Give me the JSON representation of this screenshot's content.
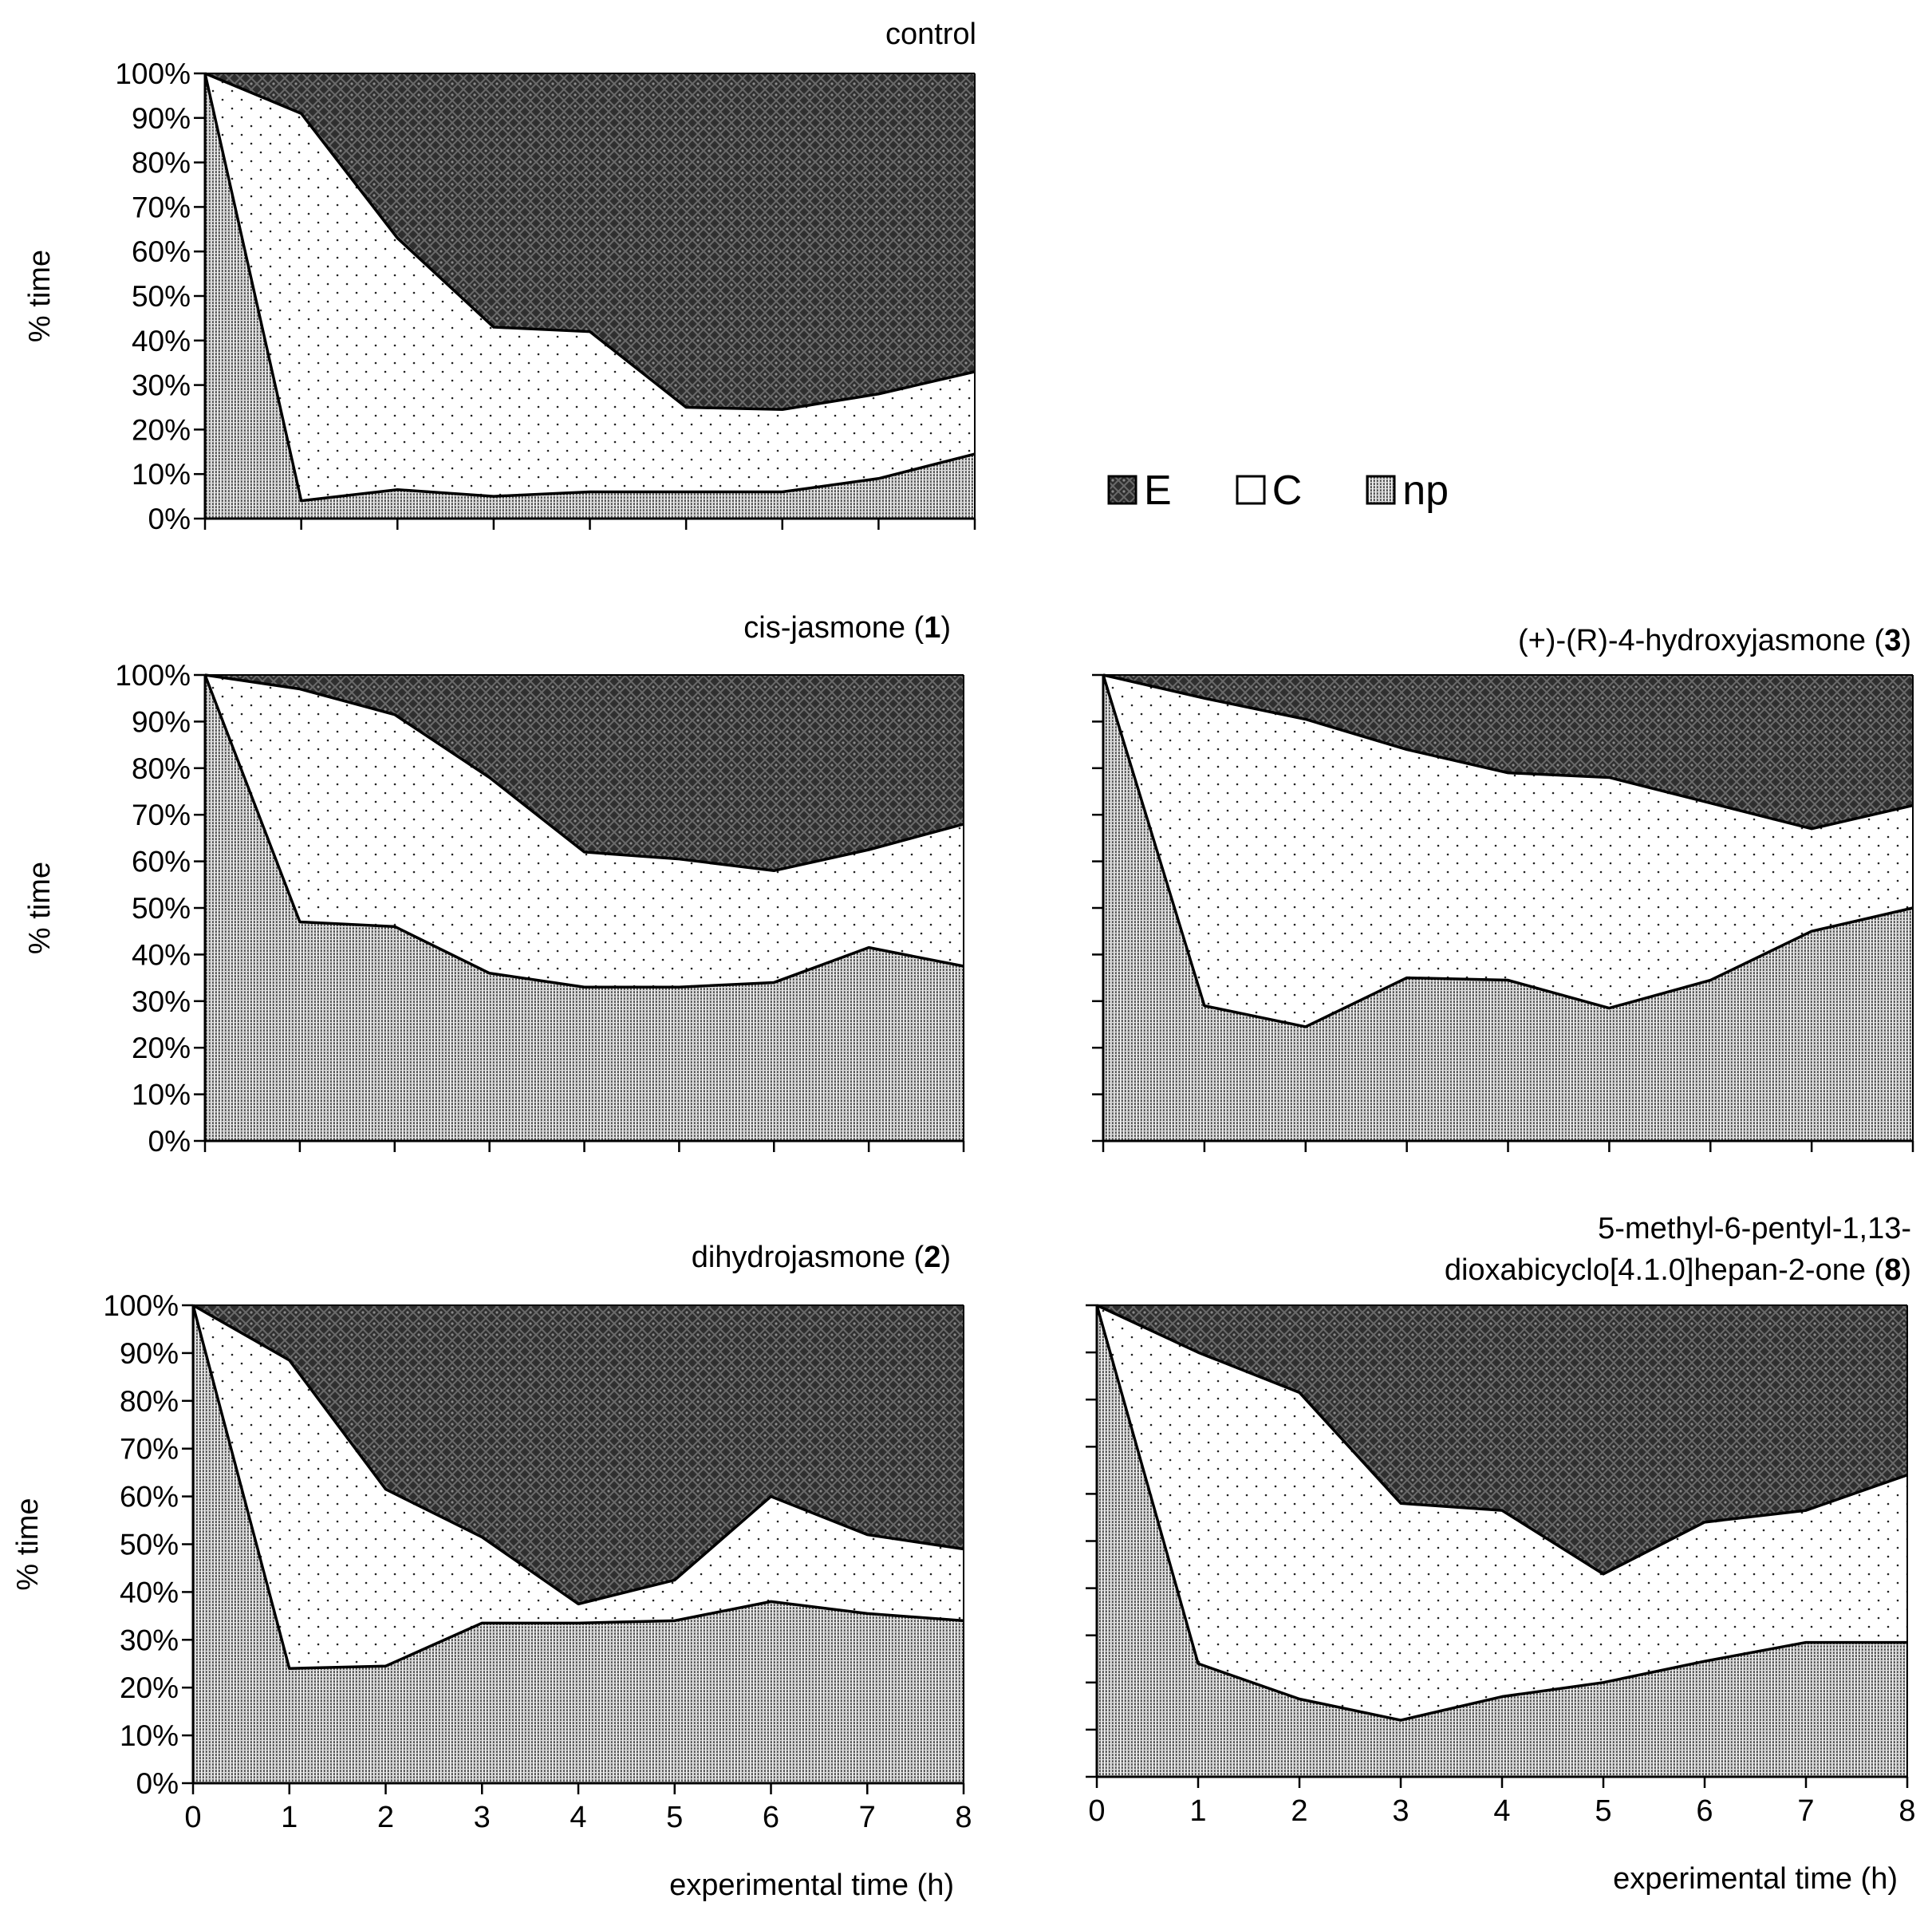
{
  "legend": {
    "E": "E",
    "C": "C",
    "np": "np"
  },
  "y_tick_labels": [
    "0%",
    "10%",
    "20%",
    "30%",
    "40%",
    "50%",
    "60%",
    "70%",
    "80%",
    "90%",
    "100%"
  ],
  "x_tick_labels": [
    "0",
    "1",
    "2",
    "3",
    "4",
    "5",
    "6",
    "7",
    "8"
  ],
  "chart_data": [
    {
      "id": "control",
      "type": "area",
      "title": "control",
      "title_bold": "",
      "ylabel": "% time",
      "xlabel": "",
      "show_y_tick_labels": true,
      "show_x_tick_labels": false,
      "x": [
        0,
        1,
        2,
        3,
        4,
        5,
        6,
        7,
        8
      ],
      "ylim": [
        0,
        100
      ],
      "series": [
        {
          "name": "np",
          "values": [
            100,
            4,
            6.5,
            5,
            6,
            6,
            6,
            9,
            14.5
          ]
        },
        {
          "name": "C",
          "values": [
            0,
            87,
            56.5,
            38,
            36,
            19,
            18.5,
            19,
            18.5
          ]
        },
        {
          "name": "E",
          "values": [
            0,
            9,
            37,
            57,
            58,
            75,
            75.5,
            72,
            67
          ]
        }
      ]
    },
    {
      "id": "cis-jasmone",
      "type": "area",
      "title": "cis-jasmone (",
      "title_bold": "1",
      "title_after": ")",
      "ylabel": "% time",
      "xlabel": "",
      "show_y_tick_labels": true,
      "show_x_tick_labels": false,
      "x": [
        0,
        1,
        2,
        3,
        4,
        5,
        6,
        7,
        8
      ],
      "ylim": [
        0,
        100
      ],
      "series": [
        {
          "name": "np",
          "values": [
            100,
            47,
            46,
            36,
            33,
            33,
            34,
            41.5,
            37.5
          ]
        },
        {
          "name": "C",
          "values": [
            0,
            50,
            45.5,
            42,
            29,
            27.5,
            24,
            21,
            30.5
          ]
        },
        {
          "name": "E",
          "values": [
            0,
            3,
            8.5,
            22,
            38,
            39.5,
            42,
            37.5,
            32
          ]
        }
      ]
    },
    {
      "id": "hydroxyjasmone",
      "type": "area",
      "title": "(+)-(R)-4-hydroxyjasmone (",
      "title_bold": "3",
      "title_after": ")",
      "ylabel": "",
      "xlabel": "",
      "show_y_tick_labels": false,
      "show_x_tick_labels": false,
      "x": [
        0,
        1,
        2,
        3,
        4,
        5,
        6,
        7,
        8
      ],
      "ylim": [
        0,
        100
      ],
      "series": [
        {
          "name": "np",
          "values": [
            100,
            29,
            24.5,
            35,
            34.5,
            28.5,
            34.5,
            45,
            50
          ]
        },
        {
          "name": "C",
          "values": [
            0,
            66,
            66,
            49,
            44.5,
            49.5,
            38,
            22,
            22
          ]
        },
        {
          "name": "E",
          "values": [
            0,
            5,
            9.5,
            16,
            21,
            22,
            27.5,
            33,
            28
          ]
        }
      ]
    },
    {
      "id": "dihydrojasmone",
      "type": "area",
      "title": "dihydrojasmone (",
      "title_bold": "2",
      "title_after": ")",
      "ylabel": "% time",
      "xlabel": "experimental time (h)",
      "show_y_tick_labels": true,
      "show_x_tick_labels": true,
      "x": [
        0,
        1,
        2,
        3,
        4,
        5,
        6,
        7,
        8
      ],
      "ylim": [
        0,
        100
      ],
      "series": [
        {
          "name": "np",
          "values": [
            100,
            24,
            24.5,
            33.5,
            33.5,
            34,
            38,
            35.5,
            34
          ]
        },
        {
          "name": "C",
          "values": [
            0,
            64.5,
            37,
            18,
            4,
            8.5,
            22,
            16.5,
            15
          ]
        },
        {
          "name": "E",
          "values": [
            0,
            11.5,
            38.5,
            48.5,
            62.5,
            57.5,
            40,
            48,
            51
          ]
        }
      ]
    },
    {
      "id": "dioxabicyclo",
      "type": "area",
      "title_line1": "5-methyl-6-pentyl-1,13-",
      "title": "dioxabicyclo[4.1.0]hepan-2-one (",
      "title_bold": "8",
      "title_after": ")",
      "ylabel": "",
      "xlabel": "experimental time (h)",
      "show_y_tick_labels": false,
      "show_x_tick_labels": true,
      "x": [
        0,
        1,
        2,
        3,
        4,
        5,
        6,
        7,
        8
      ],
      "ylim": [
        0,
        100
      ],
      "series": [
        {
          "name": "np",
          "values": [
            100,
            24,
            16.5,
            12,
            17,
            20,
            24.5,
            28.5,
            28.5
          ]
        },
        {
          "name": "C",
          "values": [
            0,
            66,
            65,
            46,
            39.5,
            23,
            29.5,
            28,
            35.5
          ]
        },
        {
          "name": "E",
          "values": [
            0,
            10,
            18.5,
            42,
            43.5,
            57,
            46,
            43.5,
            36
          ]
        }
      ]
    }
  ]
}
